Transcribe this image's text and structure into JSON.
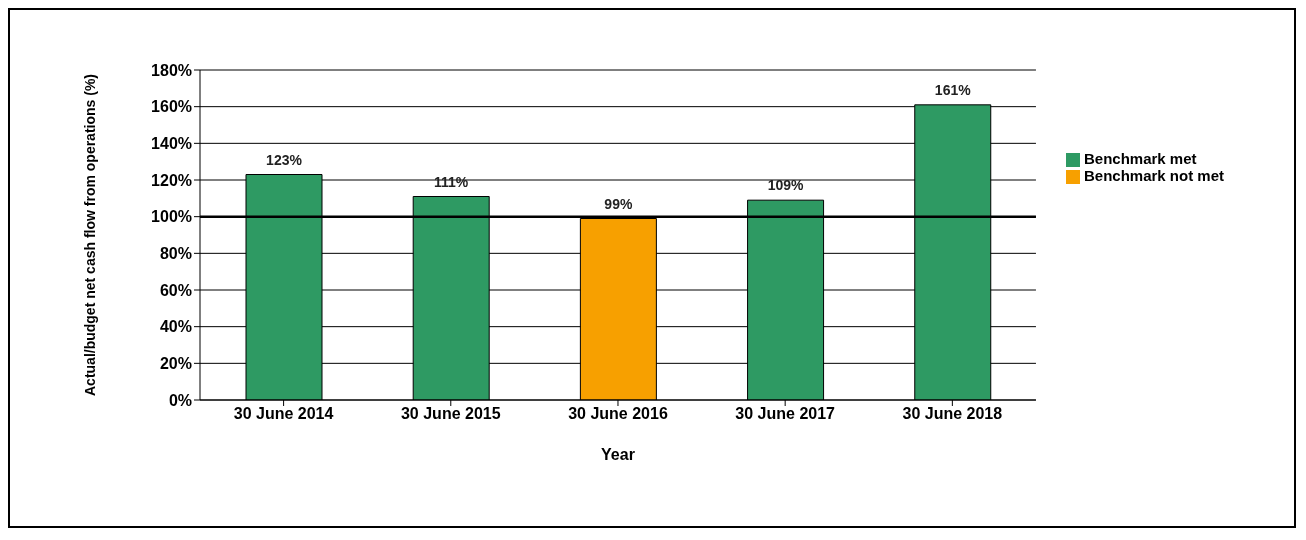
{
  "chart_data": {
    "type": "bar",
    "stacked": true,
    "xlabel": "Year",
    "ylabel": "Actual/budget net cash flow from operations (%)",
    "categories": [
      "30 June 2014",
      "30 June 2015",
      "30 June 2016",
      "30 June 2017",
      "30 June 2018"
    ],
    "series": [
      {
        "name": "Benchmark met",
        "color": "#2e9a63",
        "values": [
          123,
          111,
          null,
          109,
          161
        ],
        "value_labels": [
          "123%",
          "111%",
          null,
          "109%",
          "161%"
        ]
      },
      {
        "name": "Benchmark not met",
        "color": "#f7a000",
        "values": [
          null,
          null,
          99,
          null,
          null
        ],
        "value_labels": [
          null,
          null,
          "99%",
          null,
          null
        ]
      }
    ],
    "ylim": [
      0,
      180
    ],
    "yticks": [
      {
        "value": 0,
        "label": "0%"
      },
      {
        "value": 20,
        "label": "20%"
      },
      {
        "value": 40,
        "label": "40%"
      },
      {
        "value": 60,
        "label": "60%"
      },
      {
        "value": 80,
        "label": "80%"
      },
      {
        "value": 100,
        "label": "100%"
      },
      {
        "value": 120,
        "label": "120%"
      },
      {
        "value": 140,
        "label": "140%"
      },
      {
        "value": 160,
        "label": "160%"
      },
      {
        "value": 180,
        "label": "180%"
      }
    ],
    "ref_lines": [
      {
        "axis": "y",
        "value": 100,
        "color": "#000000"
      }
    ],
    "grid": "y",
    "legend": "right"
  }
}
